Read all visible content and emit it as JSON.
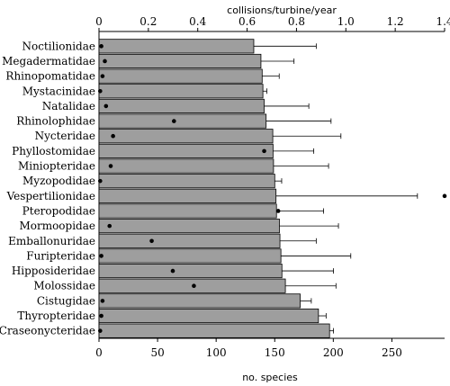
{
  "chart_data": {
    "type": "bar",
    "orientation": "horizontal",
    "categories": [
      "Noctilionidae",
      "Megadermatidae",
      "Rhinopomatidae",
      "Mystacinidae",
      "Natalidae",
      "Rhinolophidae",
      "Nycteridae",
      "Phyllostomidae",
      "Miniopteridae",
      "Myzopodidae",
      "Vespertilionidae",
      "Pteropodidae",
      "Mormoopidae",
      "Emballonuridae",
      "Furipteridae",
      "Hipposideridae",
      "Molossidae",
      "Cistugidae",
      "Thyropteridae",
      "Craseonycteridae"
    ],
    "xlabel_bottom": "no. species",
    "xlabel_top": "collisions/turbine/year",
    "bottom_axis": {
      "range": [
        0,
        295
      ],
      "ticks": [
        0,
        50,
        100,
        150,
        200,
        250
      ]
    },
    "top_axis": {
      "range": [
        0,
        1.4
      ],
      "ticks": [
        "0",
        "0.2",
        "0.4",
        "0.6",
        "0.8",
        "1.0",
        "1.2",
        "1.4"
      ]
    },
    "bar_color": "#9e9e9e",
    "series": [
      {
        "axis": "top",
        "values": [
          0.627,
          0.656,
          0.661,
          0.664,
          0.669,
          0.677,
          0.704,
          0.705,
          0.707,
          0.712,
          0.717,
          0.719,
          0.731,
          0.733,
          0.737,
          0.741,
          0.755,
          0.815,
          0.889,
          0.934
        ],
        "error_upper": [
          0.88,
          0.79,
          0.73,
          0.68,
          0.85,
          0.94,
          0.98,
          0.87,
          0.93,
          0.74,
          1.29,
          0.91,
          0.97,
          0.88,
          1.02,
          0.95,
          0.96,
          0.86,
          0.92,
          0.95
        ]
      },
      {
        "axis": "bottom",
        "marker": "dot",
        "values": [
          2,
          5,
          3,
          1,
          6,
          64,
          12,
          141,
          10,
          1,
          295,
          153,
          9,
          45,
          2,
          63,
          81,
          3,
          2,
          1
        ]
      }
    ],
    "grid": false
  }
}
